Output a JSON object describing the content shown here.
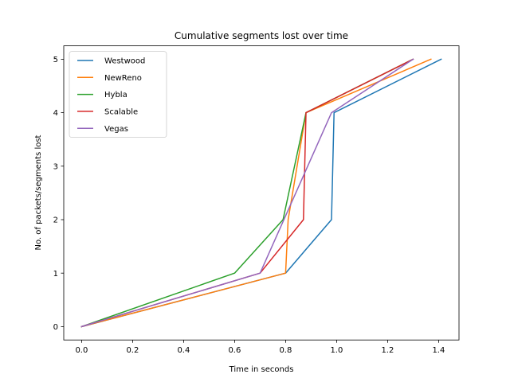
{
  "chart_data": {
    "type": "line",
    "title": "Cumulative segments lost over time",
    "xlabel": "Time in seconds",
    "ylabel": "No. of packets/segments lost",
    "xlim": [
      -0.07,
      1.48
    ],
    "ylim": [
      -0.25,
      5.25
    ],
    "xticks": [
      0.0,
      0.2,
      0.4,
      0.6,
      0.8,
      1.0,
      1.2,
      1.4
    ],
    "xtick_labels": [
      "0.0",
      "0.2",
      "0.4",
      "0.6",
      "0.8",
      "1.0",
      "1.2",
      "1.4"
    ],
    "yticks": [
      0,
      1,
      2,
      3,
      4,
      5
    ],
    "ytick_labels": [
      "0",
      "1",
      "2",
      "3",
      "4",
      "5"
    ],
    "grid": false,
    "legend_position": "top-left",
    "series": [
      {
        "name": "Westwood",
        "color": "#1f77b4",
        "points": [
          [
            0.0,
            0
          ],
          [
            0.8,
            1
          ],
          [
            0.98,
            2
          ],
          [
            0.99,
            4
          ],
          [
            1.41,
            5
          ]
        ]
      },
      {
        "name": "NewReno",
        "color": "#ff7f0e",
        "points": [
          [
            0.0,
            0
          ],
          [
            0.8,
            1
          ],
          [
            0.81,
            2
          ],
          [
            0.88,
            4
          ],
          [
            1.37,
            5
          ]
        ]
      },
      {
        "name": "Hybla",
        "color": "#2ca02c",
        "points": [
          [
            0.0,
            0
          ],
          [
            0.6,
            1
          ],
          [
            0.79,
            2
          ],
          [
            0.88,
            4
          ],
          [
            1.3,
            5
          ]
        ]
      },
      {
        "name": "Scalable",
        "color": "#d62728",
        "points": [
          [
            0.0,
            0
          ],
          [
            0.7,
            1
          ],
          [
            0.87,
            2
          ],
          [
            0.88,
            4
          ],
          [
            1.3,
            5
          ]
        ]
      },
      {
        "name": "Vegas",
        "color": "#9467bd",
        "points": [
          [
            0.0,
            0
          ],
          [
            0.7,
            1
          ],
          [
            0.98,
            4
          ],
          [
            1.3,
            5
          ]
        ]
      }
    ]
  }
}
